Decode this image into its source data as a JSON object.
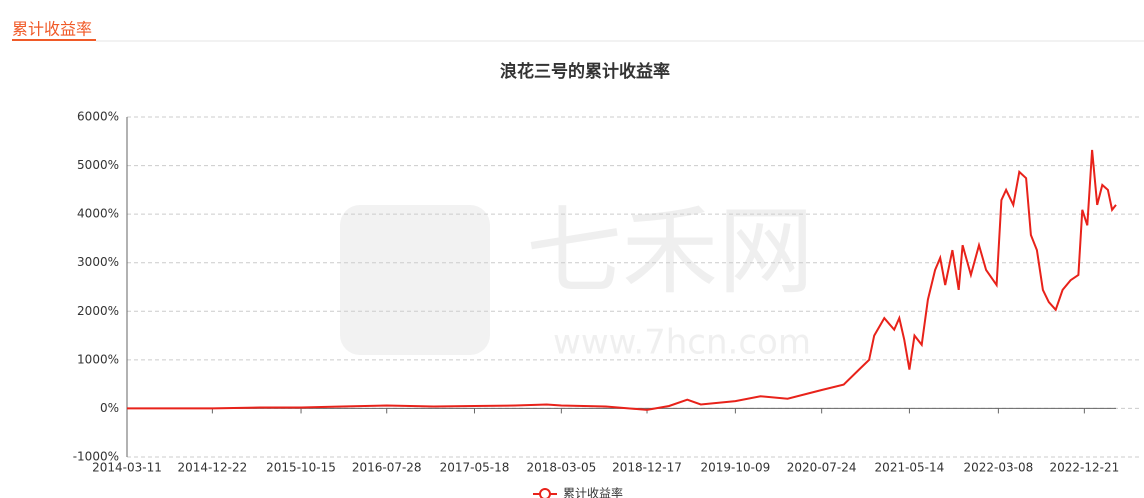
{
  "header": {
    "tab": "累计收益率"
  },
  "watermark": {
    "name": "七禾网",
    "url": "www.7hcn.com"
  },
  "chart_data": {
    "type": "line",
    "title": "浪花三号的累计收益率",
    "x": [
      "2014-03-11",
      "2014-12-22",
      "2015-06-01",
      "2015-10-15",
      "2016-03-01",
      "2016-07-28",
      "2017-01-01",
      "2017-05-18",
      "2017-10-01",
      "2018-01-15",
      "2018-03-05",
      "2018-08-01",
      "2018-12-17",
      "2019-03-01",
      "2019-05-01",
      "2019-06-15",
      "2019-10-09",
      "2020-01-01",
      "2020-04-01",
      "2020-07-24",
      "2020-10-06",
      "2020-11-26",
      "2020-12-30",
      "2021-01-16",
      "2021-02-19",
      "2021-03-24",
      "2021-04-10",
      "2021-04-27",
      "2021-05-14",
      "2021-05-31",
      "2021-06-24",
      "2021-07-15",
      "2021-08-08",
      "2021-08-25",
      "2021-09-11",
      "2021-10-05",
      "2021-10-26",
      "2021-11-08",
      "2021-12-06",
      "2022-01-02",
      "2022-01-26",
      "2022-03-02",
      "2022-03-18",
      "2022-04-03",
      "2022-04-27",
      "2022-05-17",
      "2022-06-09",
      "2022-06-25",
      "2022-07-15",
      "2022-08-04",
      "2022-08-24",
      "2022-09-16",
      "2022-10-09",
      "2022-11-05",
      "2022-12-01",
      "2022-12-14",
      "2022-12-31",
      "2023-01-16",
      "2023-02-02",
      "2023-02-19",
      "2023-03-10",
      "2023-03-24",
      "2023-04-06"
    ],
    "series": [
      {
        "name": "累计收益率",
        "color": "#e8221a",
        "values": [
          0,
          0,
          20,
          20,
          40,
          60,
          40,
          50,
          60,
          80,
          60,
          40,
          -30,
          50,
          180,
          80,
          150,
          250,
          200,
          380,
          490,
          800,
          1000,
          1500,
          1860,
          1620,
          1860,
          1410,
          800,
          1500,
          1310,
          2240,
          2850,
          3100,
          2540,
          3260,
          2440,
          3360,
          2750,
          3360,
          2850,
          2540,
          4290,
          4500,
          4190,
          4870,
          4740,
          3570,
          3260,
          2440,
          2190,
          2030,
          2440,
          2640,
          2750,
          4090,
          3770,
          5320,
          4190,
          4600,
          4500,
          4090,
          4190
        ]
      }
    ],
    "xlim": [
      "2014-03-11",
      "2023-04-06"
    ],
    "xticks": [
      "2014-03-11",
      "2014-12-22",
      "2015-10-15",
      "2016-07-28",
      "2017-05-18",
      "2018-03-05",
      "2018-12-17",
      "2019-10-09",
      "2020-07-24",
      "2021-05-14",
      "2022-03-08",
      "2022-12-21"
    ],
    "ylim": [
      -1000,
      6000
    ],
    "yticks": [
      {
        "value": -1000,
        "label": "-1000%"
      },
      {
        "value": 0,
        "label": "0%"
      },
      {
        "value": 1000,
        "label": "1000%"
      },
      {
        "value": 2000,
        "label": "2000%"
      },
      {
        "value": 3000,
        "label": "3000%"
      },
      {
        "value": 4000,
        "label": "4000%"
      },
      {
        "value": 5000,
        "label": "5000%"
      },
      {
        "value": 6000,
        "label": "6000%"
      }
    ],
    "grid": true,
    "legend": "bottom"
  }
}
